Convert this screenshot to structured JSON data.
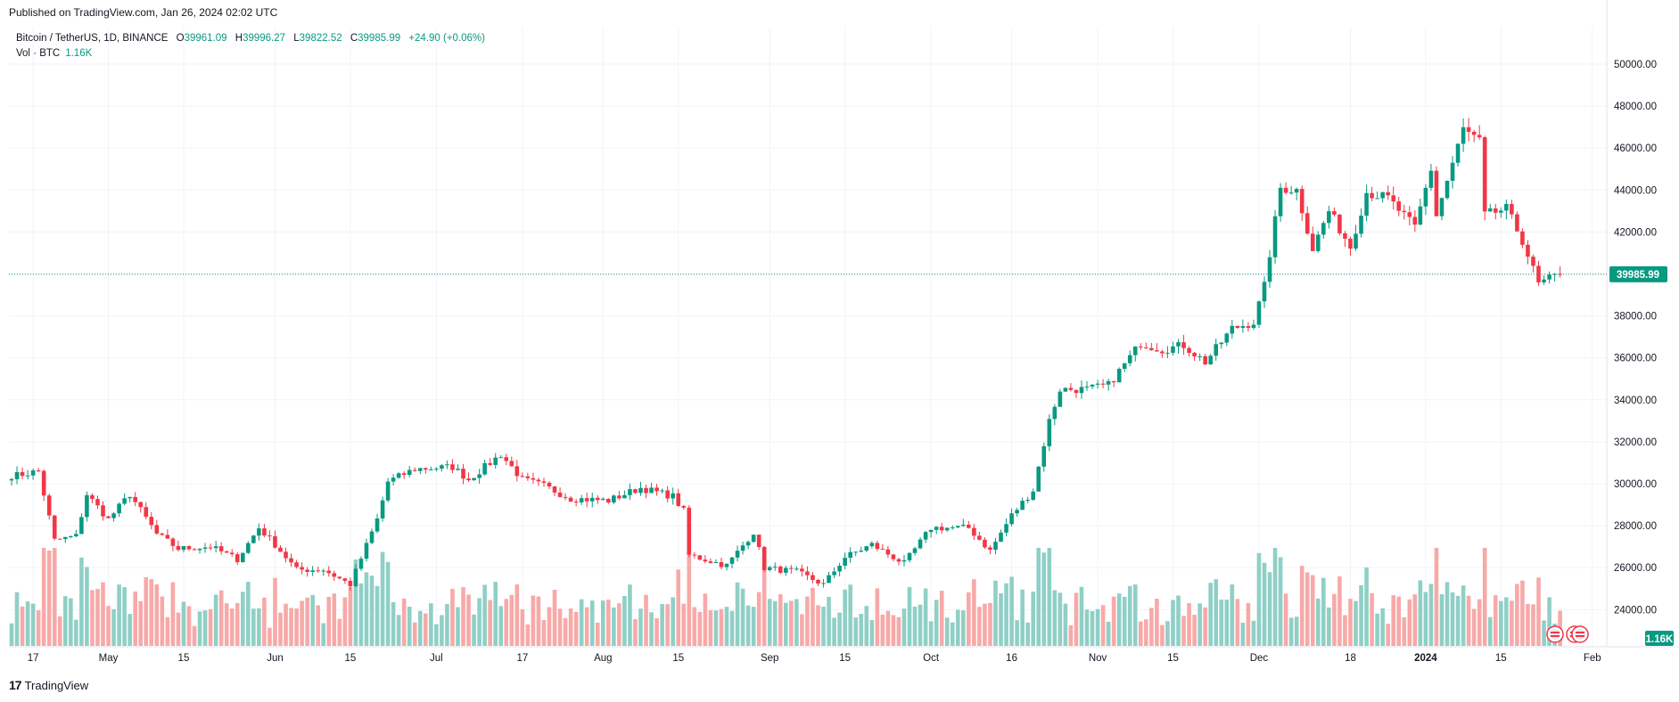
{
  "header": {
    "published": "Published on TradingView.com, Jan 26, 2024 02:02 UTC"
  },
  "legend": {
    "symbol": "Bitcoin / TetherUS, 1D, BINANCE",
    "open_label": "O",
    "open": "39961.09",
    "high_label": "H",
    "high": "39996.27",
    "low_label": "L",
    "low": "39822.52",
    "close_label": "C",
    "close": "39985.99",
    "change": "+24.90 (+0.06%)",
    "volume_label": "Vol · BTC",
    "volume": "1.16K"
  },
  "footer": {
    "brand": "TradingView",
    "logo_icon": "tradingview-logo-icon"
  },
  "colors": {
    "up": "#089981",
    "down": "#f23645",
    "vol_up": "#8fcfc6",
    "vol_down": "#f7a9a8",
    "grid": "#f0f3fa",
    "axis_text": "#131722"
  },
  "chart_data": {
    "type": "candlestick",
    "title": "",
    "xlabel": "",
    "ylabel": "",
    "ylim": [
      23000,
      50500
    ],
    "y_ticks": [
      "24000.00",
      "26000.00",
      "28000.00",
      "30000.00",
      "32000.00",
      "34000.00",
      "36000.00",
      "38000.00",
      "40000.00",
      "42000.00",
      "44000.00",
      "46000.00",
      "48000.00",
      "50000.00"
    ],
    "x_ticks": [
      "17",
      "May",
      "15",
      "Jun",
      "15",
      "Jul",
      "17",
      "Aug",
      "15",
      "Sep",
      "15",
      "Oct",
      "16",
      "Nov",
      "15",
      "Dec",
      "18",
      "2024",
      "15",
      "Feb"
    ],
    "last_price_label": "39985.99",
    "volume_badge": "1.16K",
    "grid": true,
    "anchors": [
      [
        "2023-04-14",
        30400
      ],
      [
        "2023-04-18",
        30600
      ],
      [
        "2023-04-21",
        27300
      ],
      [
        "2023-04-25",
        27500
      ],
      [
        "2023-04-27",
        29500
      ],
      [
        "2023-05-01",
        28300
      ],
      [
        "2023-05-05",
        29500
      ],
      [
        "2023-05-10",
        27600
      ],
      [
        "2023-05-14",
        26900
      ],
      [
        "2023-05-20",
        27000
      ],
      [
        "2023-05-25",
        26400
      ],
      [
        "2023-05-29",
        27900
      ],
      [
        "2023-06-01",
        27100
      ],
      [
        "2023-06-05",
        25900
      ],
      [
        "2023-06-10",
        25900
      ],
      [
        "2023-06-15",
        25200
      ],
      [
        "2023-06-20",
        28300
      ],
      [
        "2023-06-22",
        30100
      ],
      [
        "2023-06-27",
        30700
      ],
      [
        "2023-07-04",
        30800
      ],
      [
        "2023-07-07",
        30200
      ],
      [
        "2023-07-13",
        31400
      ],
      [
        "2023-07-17",
        30200
      ],
      [
        "2023-07-21",
        29900
      ],
      [
        "2023-07-26",
        29300
      ],
      [
        "2023-08-02",
        29200
      ],
      [
        "2023-08-08",
        29800
      ],
      [
        "2023-08-14",
        29400
      ],
      [
        "2023-08-16",
        28700
      ],
      [
        "2023-08-17",
        26600
      ],
      [
        "2023-08-24",
        26100
      ],
      [
        "2023-08-29",
        27700
      ],
      [
        "2023-08-31",
        26000
      ],
      [
        "2023-09-06",
        25800
      ],
      [
        "2023-09-11",
        25200
      ],
      [
        "2023-09-15",
        26500
      ],
      [
        "2023-09-20",
        27100
      ],
      [
        "2023-09-26",
        26200
      ],
      [
        "2023-10-01",
        27900
      ],
      [
        "2023-10-08",
        27900
      ],
      [
        "2023-10-12",
        26800
      ],
      [
        "2023-10-16",
        28500
      ],
      [
        "2023-10-20",
        29700
      ],
      [
        "2023-10-23",
        33000
      ],
      [
        "2023-10-25",
        34500
      ],
      [
        "2023-10-30",
        34500
      ],
      [
        "2023-11-03",
        34700
      ],
      [
        "2023-11-09",
        36700
      ],
      [
        "2023-11-13",
        36400
      ],
      [
        "2023-11-17",
        36600
      ],
      [
        "2023-11-21",
        35800
      ],
      [
        "2023-11-26",
        37400
      ],
      [
        "2023-11-30",
        37700
      ],
      [
        "2023-12-02",
        39400
      ],
      [
        "2023-12-05",
        44100
      ],
      [
        "2023-12-08",
        44000
      ],
      [
        "2023-12-11",
        41200
      ],
      [
        "2023-12-14",
        43000
      ],
      [
        "2023-12-18",
        41300
      ],
      [
        "2023-12-21",
        43900
      ],
      [
        "2023-12-25",
        43600
      ],
      [
        "2023-12-30",
        42200
      ],
      [
        "2024-01-02",
        45000
      ],
      [
        "2024-01-03",
        42800
      ],
      [
        "2024-01-08",
        46900
      ],
      [
        "2024-01-11",
        46300
      ],
      [
        "2024-01-12",
        42800
      ],
      [
        "2024-01-16",
        43100
      ],
      [
        "2024-01-19",
        41600
      ],
      [
        "2024-01-22",
        39500
      ],
      [
        "2024-01-26",
        39986
      ]
    ]
  }
}
